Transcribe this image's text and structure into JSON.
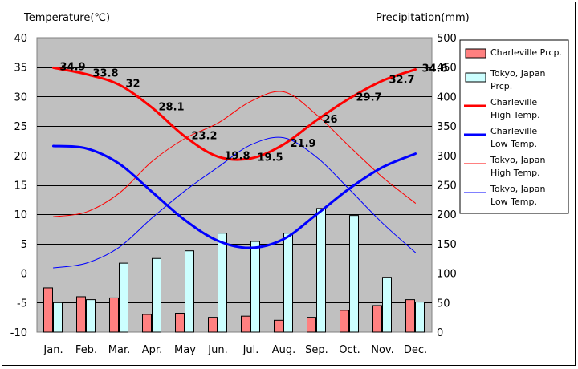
{
  "chart_data": {
    "type": "bar+line",
    "categories": [
      "Jan.",
      "Feb.",
      "Mar.",
      "Apr.",
      "May",
      "Jun.",
      "Jul.",
      "Aug.",
      "Sep.",
      "Oct.",
      "Nov.",
      "Dec."
    ],
    "left_axis": {
      "title": "Temperature(℃)",
      "min": -10,
      "max": 40,
      "step": 5,
      "ticks": [
        "40",
        "35",
        "30",
        "25",
        "20",
        "15",
        "10",
        "5",
        "0",
        "-5",
        "-10"
      ]
    },
    "right_axis": {
      "title": "Precipitation(mm)",
      "min": 0,
      "max": 500,
      "step": 50,
      "ticks": [
        "500",
        "450",
        "400",
        "350",
        "300",
        "250",
        "200",
        "150",
        "100",
        "50",
        "0"
      ]
    },
    "grid": true,
    "legend_position": "right",
    "bars": [
      {
        "name": "Charleville Prcp.",
        "color": "#ff8080",
        "values": [
          75,
          60,
          58,
          30,
          32,
          25,
          27,
          20,
          25,
          37,
          45,
          55
        ]
      },
      {
        "name": "Tokyo, Japan Prcp.",
        "color": "#ccffff",
        "values": [
          50,
          55,
          117,
          125,
          138,
          168,
          154,
          168,
          210,
          198,
          93,
          51
        ]
      }
    ],
    "lines": [
      {
        "name": "Charleville High Temp.",
        "color": "#ff0000",
        "width": 3,
        "axis": "left",
        "values": [
          34.9,
          33.8,
          32,
          28.1,
          23.2,
          19.8,
          19.5,
          21.9,
          26,
          29.7,
          32.7,
          34.6
        ],
        "labels": [
          "34.9",
          "33.8",
          "32",
          "28.1",
          "23.2",
          "19.8",
          "19.5",
          "21.9",
          "26",
          "29.7",
          "32.7",
          "34.6"
        ]
      },
      {
        "name": "Charleville Low Temp.",
        "color": "#0000ff",
        "width": 3,
        "axis": "left",
        "values": [
          21.6,
          21.2,
          18.6,
          13.8,
          9.0,
          5.5,
          4.3,
          5.8,
          10.0,
          14.4,
          18.0,
          20.3
        ]
      },
      {
        "name": "Tokyo, Japan High Temp.",
        "color": "#ff0000",
        "width": 1,
        "axis": "left",
        "values": [
          9.6,
          10.4,
          13.6,
          19.0,
          22.9,
          25.5,
          29.2,
          30.8,
          26.9,
          21.5,
          16.3,
          11.9
        ]
      },
      {
        "name": "Tokyo, Japan Low Temp.",
        "color": "#0000ff",
        "width": 1,
        "axis": "left",
        "values": [
          0.9,
          1.7,
          4.4,
          9.4,
          14.0,
          18.0,
          21.8,
          23.0,
          19.7,
          14.2,
          8.5,
          3.5
        ]
      }
    ],
    "legend": [
      {
        "kind": "bar",
        "series": 0,
        "lines": [
          "Charleville Prcp."
        ]
      },
      {
        "kind": "bar",
        "series": 1,
        "lines": [
          "Tokyo, Japan",
          "Prcp."
        ]
      },
      {
        "kind": "line",
        "series": 0,
        "lines": [
          "Charleville",
          "High Temp."
        ]
      },
      {
        "kind": "line",
        "series": 1,
        "lines": [
          "Charleville",
          "Low Temp."
        ]
      },
      {
        "kind": "line",
        "series": 2,
        "lines": [
          "Tokyo, Japan",
          "High Temp."
        ]
      },
      {
        "kind": "line",
        "series": 3,
        "lines": [
          "Tokyo, Japan",
          "Low Temp."
        ]
      }
    ]
  }
}
